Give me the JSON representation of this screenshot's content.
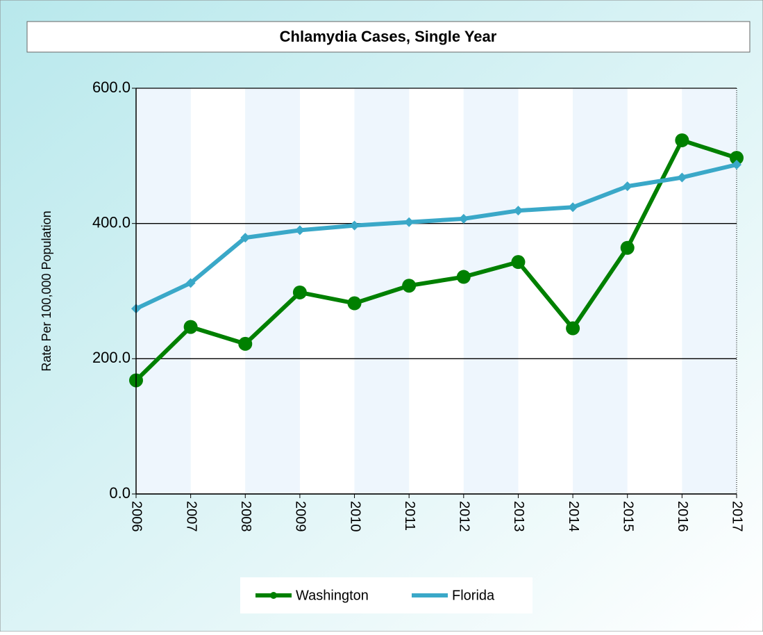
{
  "chart_data": {
    "type": "line",
    "title": "Chlamydia Cases, Single Year",
    "y_label": "Rate Per 100,000 Population",
    "categories": [
      "2006",
      "2007",
      "2008",
      "2009",
      "2010",
      "2011",
      "2012",
      "2013",
      "2014",
      "2015",
      "2016",
      "2017"
    ],
    "series": [
      {
        "name": "Washington",
        "color": "#008000",
        "marker": "circle",
        "values": [
          168,
          247,
          222,
          298,
          282,
          308,
          321,
          343,
          245,
          364,
          523,
          497
        ]
      },
      {
        "name": "Florida",
        "color": "#3aa8c8",
        "marker": "diamond",
        "values": [
          274,
          312,
          379,
          390,
          397,
          402,
          407,
          419,
          424,
          455,
          468,
          487
        ]
      }
    ],
    "ylim": [
      0,
      600
    ],
    "yticks": [
      {
        "value": 0,
        "label": "0.0"
      },
      {
        "value": 200,
        "label": "200.0"
      },
      {
        "value": 400,
        "label": "400.0"
      },
      {
        "value": 600,
        "label": "600.0"
      }
    ],
    "grid": true,
    "legend": "bottom"
  }
}
